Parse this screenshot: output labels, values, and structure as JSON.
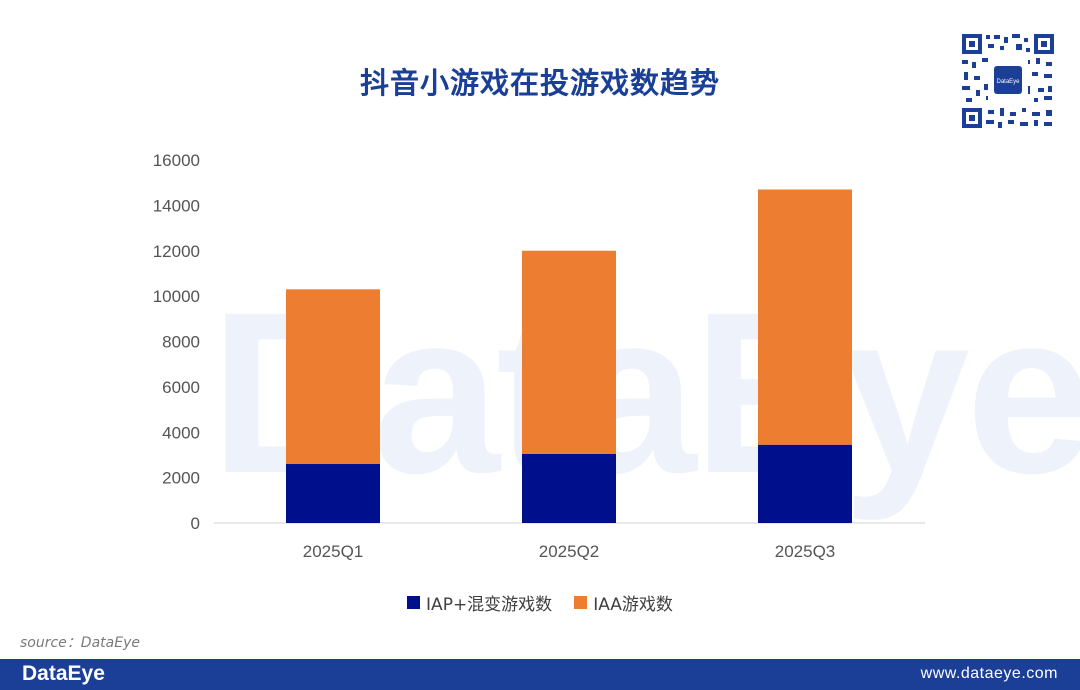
{
  "title": "抖音小游戏在投游戏数趋势",
  "watermark": "DataEye",
  "qr_icon": "qr-code-icon",
  "source": "source：DataEye",
  "footer": {
    "brand": "DataEye",
    "url": "www.dataeye.com"
  },
  "colors": {
    "iap": "#000f8c",
    "iaa": "#ed7d31",
    "title": "#1a3f97",
    "footer": "#1b3f96"
  },
  "chart_data": {
    "type": "bar",
    "stacked": true,
    "categories": [
      "2025Q1",
      "2025Q2",
      "2025Q3"
    ],
    "series": [
      {
        "name": "IAP+混变游戏数",
        "values": [
          2600,
          3050,
          3450
        ]
      },
      {
        "name": "IAA游戏数",
        "values": [
          7700,
          8950,
          11250
        ]
      }
    ],
    "yticks": [
      "0",
      "2000",
      "4000",
      "6000",
      "8000",
      "10000",
      "12000",
      "14000",
      "16000"
    ],
    "ylim": [
      0,
      16000
    ],
    "title": "抖音小游戏在投游戏数趋势",
    "xlabel": "",
    "ylabel": "",
    "grid": false,
    "legend": "bottom"
  }
}
